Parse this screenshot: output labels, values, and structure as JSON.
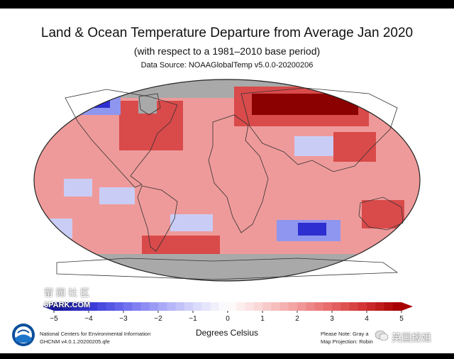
{
  "title": "Land & Ocean Temperature Departure from Average Jan 2020",
  "subtitle": "(with respect to a 1981–2010 base period)",
  "source": "Data Source: NOAAGlobalTemp v5.0.0-20200206",
  "colorbar": {
    "ticks": [
      "−5",
      "−4",
      "−3",
      "−2",
      "−1",
      "0",
      "1",
      "2",
      "3",
      "4",
      "5"
    ],
    "min": -5,
    "max": 5,
    "units": "Degrees Celsius",
    "colors": [
      "#1a1a9e",
      "#3b3bd8",
      "#6f6ff0",
      "#a5a5f7",
      "#d7d7fb",
      "#ffffff",
      "#f9d3d3",
      "#f3a0a0",
      "#e86a6a",
      "#d23434",
      "#a80000"
    ]
  },
  "map": {
    "projection": "Robinson",
    "land_outline_color": "#444444",
    "no_data_color": "#a9a9a9",
    "anomaly_colors": {
      "strong_warm": "#8b0000",
      "warm": "#d94a4a",
      "mild_warm": "#ef9a9a",
      "slight_warm": "#f4c2c2",
      "slight_cool": "#c9cdf5",
      "cool": "#8f96ef",
      "strong_cool": "#2d2fd0"
    }
  },
  "footer": {
    "ncei_line1": "National Centers for Environmental Information",
    "ncei_line2": "GHCNM v4.0.1.20200205.qfe",
    "note_line1": "Please Note: Gray a",
    "note_line2": "Map Projection: Robin"
  },
  "watermarks": {
    "left_top": "留园社区",
    "left_bottom": "6PARK.COM",
    "right": "英国报姐"
  }
}
